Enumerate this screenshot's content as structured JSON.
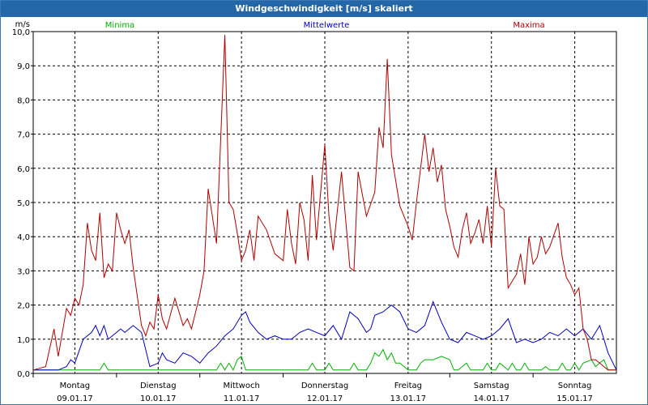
{
  "window": {
    "title": "Windgeschwindigkeit [m/s] skaliert"
  },
  "chart_data": {
    "type": "line",
    "title": "Windgeschwindigkeit [m/s] skaliert",
    "ylabel": "m/s",
    "ylim": [
      0,
      10
    ],
    "xlim": [
      0,
      7
    ],
    "grid": true,
    "yticks": [
      "0,0",
      "1,0",
      "2,0",
      "3,0",
      "4,0",
      "5,0",
      "6,0",
      "7,0",
      "8,0",
      "9,0",
      "10,0"
    ],
    "xticks": [
      {
        "day": "Montag",
        "date": "09.01.17"
      },
      {
        "day": "Dienstag",
        "date": "10.01.17"
      },
      {
        "day": "Mittwoch",
        "date": "11.01.17"
      },
      {
        "day": "Donnerstag",
        "date": "12.01.17"
      },
      {
        "day": "Freitag",
        "date": "13.01.17"
      },
      {
        "day": "Samstag",
        "date": "14.01.17"
      },
      {
        "day": "Sonntag",
        "date": "15.01.17"
      }
    ],
    "series": [
      {
        "name": "Minima",
        "color": "#00b000",
        "x": [
          0,
          0.5,
          0.8,
          0.85,
          0.9,
          1.0,
          1.5,
          2.0,
          2.2,
          2.25,
          2.3,
          2.35,
          2.4,
          2.45,
          2.5,
          2.55,
          2.6,
          2.7,
          3.0,
          3.3,
          3.35,
          3.4,
          3.5,
          3.55,
          3.6,
          3.7,
          3.8,
          3.85,
          3.9,
          4.0,
          4.05,
          4.1,
          4.15,
          4.2,
          4.25,
          4.3,
          4.35,
          4.4,
          4.5,
          4.6,
          4.65,
          4.7,
          4.75,
          4.8,
          4.9,
          5.0,
          5.05,
          5.1,
          5.2,
          5.25,
          5.3,
          5.4,
          5.45,
          5.5,
          5.55,
          5.6,
          5.7,
          5.75,
          5.8,
          5.85,
          5.9,
          5.95,
          6.0,
          6.1,
          6.15,
          6.2,
          6.25,
          6.3,
          6.35,
          6.4,
          6.45,
          6.5,
          6.55,
          6.6,
          6.7,
          6.75,
          6.8,
          6.85,
          6.9,
          6.95,
          7.0
        ],
        "values": [
          0.1,
          0.1,
          0.1,
          0.3,
          0.1,
          0.1,
          0.1,
          0.1,
          0.1,
          0.3,
          0.1,
          0.3,
          0.1,
          0.4,
          0.5,
          0.1,
          0.1,
          0.1,
          0.1,
          0.1,
          0.3,
          0.1,
          0.1,
          0.3,
          0.1,
          0.1,
          0.1,
          0.3,
          0.1,
          0.1,
          0.3,
          0.6,
          0.5,
          0.7,
          0.4,
          0.6,
          0.3,
          0.3,
          0.1,
          0.1,
          0.3,
          0.4,
          0.4,
          0.4,
          0.5,
          0.4,
          0.1,
          0.1,
          0.3,
          0.1,
          0.1,
          0.1,
          0.3,
          0.1,
          0.1,
          0.3,
          0.1,
          0.3,
          0.1,
          0.1,
          0.3,
          0.1,
          0.1,
          0.1,
          0.2,
          0.1,
          0.1,
          0.1,
          0.3,
          0.1,
          0.1,
          0.3,
          0.1,
          0.3,
          0.4,
          0.2,
          0.3,
          0.4,
          0.1,
          0.1,
          0.1
        ]
      },
      {
        "name": "Mittelwerte",
        "color": "#0000c0",
        "x": [
          0,
          0.2,
          0.3,
          0.4,
          0.45,
          0.5,
          0.6,
          0.7,
          0.75,
          0.8,
          0.85,
          0.9,
          1.0,
          1.05,
          1.1,
          1.2,
          1.3,
          1.4,
          1.5,
          1.55,
          1.6,
          1.7,
          1.8,
          1.9,
          2.0,
          2.1,
          2.2,
          2.3,
          2.4,
          2.5,
          2.55,
          2.6,
          2.7,
          2.8,
          2.9,
          3.0,
          3.1,
          3.2,
          3.3,
          3.4,
          3.5,
          3.6,
          3.7,
          3.8,
          3.9,
          4.0,
          4.05,
          4.1,
          4.2,
          4.3,
          4.4,
          4.5,
          4.6,
          4.7,
          4.8,
          4.9,
          5.0,
          5.1,
          5.2,
          5.3,
          5.4,
          5.5,
          5.6,
          5.7,
          5.8,
          5.9,
          6.0,
          6.1,
          6.2,
          6.3,
          6.4,
          6.5,
          6.6,
          6.7,
          6.8,
          6.9,
          7.0
        ],
        "values": [
          0.1,
          0.1,
          0.1,
          0.2,
          0.4,
          0.3,
          1.0,
          1.2,
          1.4,
          1.1,
          1.4,
          1.0,
          1.2,
          1.3,
          1.2,
          1.4,
          1.2,
          0.2,
          0.3,
          0.6,
          0.4,
          0.3,
          0.6,
          0.5,
          0.3,
          0.6,
          0.8,
          1.1,
          1.3,
          1.7,
          1.8,
          1.5,
          1.2,
          1.0,
          1.1,
          1.0,
          1.0,
          1.2,
          1.3,
          1.2,
          1.1,
          1.4,
          1.0,
          1.8,
          1.6,
          1.2,
          1.3,
          1.7,
          1.8,
          2.0,
          1.8,
          1.3,
          1.2,
          1.4,
          2.1,
          1.5,
          1.0,
          0.9,
          1.2,
          1.1,
          1.0,
          1.1,
          1.3,
          1.6,
          0.9,
          1.0,
          0.9,
          1.0,
          1.2,
          1.1,
          1.3,
          1.1,
          1.3,
          1.0,
          1.4,
          0.6,
          0.1
        ]
      },
      {
        "name": "Maxima",
        "color": "#b00000",
        "x": [
          0,
          0.15,
          0.25,
          0.3,
          0.4,
          0.45,
          0.5,
          0.55,
          0.6,
          0.65,
          0.7,
          0.75,
          0.8,
          0.85,
          0.9,
          0.95,
          1.0,
          1.05,
          1.1,
          1.15,
          1.2,
          1.3,
          1.35,
          1.4,
          1.45,
          1.5,
          1.55,
          1.6,
          1.7,
          1.8,
          1.85,
          1.9,
          2.0,
          2.05,
          2.1,
          2.2,
          2.3,
          2.35,
          2.4,
          2.45,
          2.5,
          2.55,
          2.6,
          2.65,
          2.7,
          2.8,
          2.9,
          3.0,
          3.05,
          3.1,
          3.15,
          3.2,
          3.25,
          3.3,
          3.35,
          3.4,
          3.5,
          3.55,
          3.6,
          3.7,
          3.8,
          3.85,
          3.9,
          4.0,
          4.1,
          4.15,
          4.2,
          4.25,
          4.3,
          4.4,
          4.5,
          4.55,
          4.6,
          4.7,
          4.75,
          4.8,
          4.85,
          4.9,
          4.95,
          5.0,
          5.05,
          5.1,
          5.15,
          5.2,
          5.25,
          5.3,
          5.35,
          5.4,
          5.45,
          5.5,
          5.55,
          5.6,
          5.65,
          5.7,
          5.75,
          5.8,
          5.85,
          5.9,
          5.95,
          6.0,
          6.05,
          6.1,
          6.15,
          6.2,
          6.3,
          6.35,
          6.4,
          6.45,
          6.5,
          6.55,
          6.6,
          6.65,
          6.7,
          6.75,
          6.8,
          6.85,
          6.9,
          7.0
        ],
        "values": [
          0.1,
          0.2,
          1.3,
          0.5,
          1.9,
          1.7,
          2.2,
          2.0,
          2.6,
          4.4,
          3.6,
          3.3,
          4.7,
          2.8,
          3.2,
          3.0,
          4.7,
          4.2,
          3.8,
          4.2,
          3.1,
          1.4,
          1.1,
          1.5,
          1.3,
          2.3,
          1.6,
          1.3,
          2.2,
          1.4,
          1.6,
          1.3,
          2.3,
          3.0,
          5.4,
          3.8,
          9.9,
          5.0,
          4.8,
          4.1,
          3.3,
          3.6,
          4.2,
          3.3,
          4.6,
          4.2,
          3.5,
          3.3,
          4.8,
          3.8,
          3.2,
          5.0,
          4.5,
          3.3,
          5.8,
          3.9,
          6.7,
          4.6,
          3.6,
          5.9,
          3.1,
          3.0,
          5.9,
          4.6,
          5.3,
          7.2,
          6.6,
          9.2,
          6.4,
          4.9,
          4.3,
          3.9,
          5.0,
          7.0,
          5.9,
          6.6,
          5.6,
          6.1,
          4.8,
          4.3,
          3.7,
          3.4,
          4.2,
          4.7,
          3.8,
          4.1,
          4.5,
          3.8,
          4.9,
          3.7,
          6.0,
          4.9,
          4.8,
          2.5,
          2.7,
          2.9,
          3.5,
          2.6,
          4.0,
          3.2,
          3.4,
          4.0,
          3.5,
          3.7,
          4.4,
          3.4,
          2.8,
          2.6,
          2.3,
          2.5,
          1.3,
          1.0,
          0.4,
          0.4,
          0.3,
          0.2,
          0.1,
          0.1
        ]
      }
    ]
  }
}
